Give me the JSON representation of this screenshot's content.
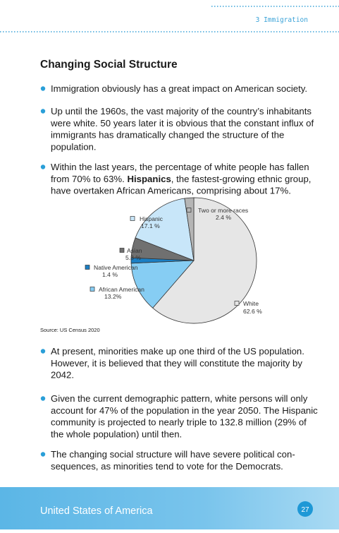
{
  "header": {
    "chapter": "3 Immigration"
  },
  "section": {
    "title": "Changing Social Structure"
  },
  "bullets_top": [
    [
      "Immigration obviously has a great impact on American society."
    ],
    [
      "Up until the 1960s, the vast majority of the country’s inhabitants",
      "were white. 50 years later it is obvious that the constant influx of",
      "immigrants has dramatically changed the structure of the",
      "population."
    ],
    [
      "Within the last years, the percentage of white people has fallen",
      {
        "before": "from 70% to 63%. ",
        "bold": "Hispanics",
        "after": ", the fastest-growing ethnic group,"
      },
      "have overtaken African Americans, comprising about 17%."
    ]
  ],
  "chart_data": {
    "type": "pie",
    "categories": [
      "White",
      "African American",
      "Native American",
      "Asian",
      "Hispanic",
      "Two or more races"
    ],
    "values": [
      62.6,
      13.2,
      1.4,
      5.3,
      17.1,
      2.4
    ],
    "value_labels": [
      "62.6 %",
      "13.2%",
      "1.4 %",
      "5.3 %",
      "17.1 %",
      "2.4 %"
    ],
    "colors": [
      "#e6e6e6",
      "#86cdf3",
      "#1b7fc4",
      "#707070",
      "#c8e6f9",
      "#b5b5b5"
    ],
    "source": "Source: US Census 2020"
  },
  "bullets_bottom": [
    [
      "At present, minorities make up one third of the US population.",
      "However, it is believed that they will constitute the majority by",
      "2042."
    ],
    [
      "Given the current demographic pattern, white persons will only",
      "account for 47% of the population in the year 2050. The Hispanic",
      "community is projected to nearly triple to 132.8 million (29% of",
      "the whole population) until then."
    ],
    [
      "The changing social structure will have severe political con-",
      "sequences, as minorities tend to vote for the Democrats."
    ]
  ],
  "footer": {
    "book": "United States of America",
    "page": "27"
  }
}
